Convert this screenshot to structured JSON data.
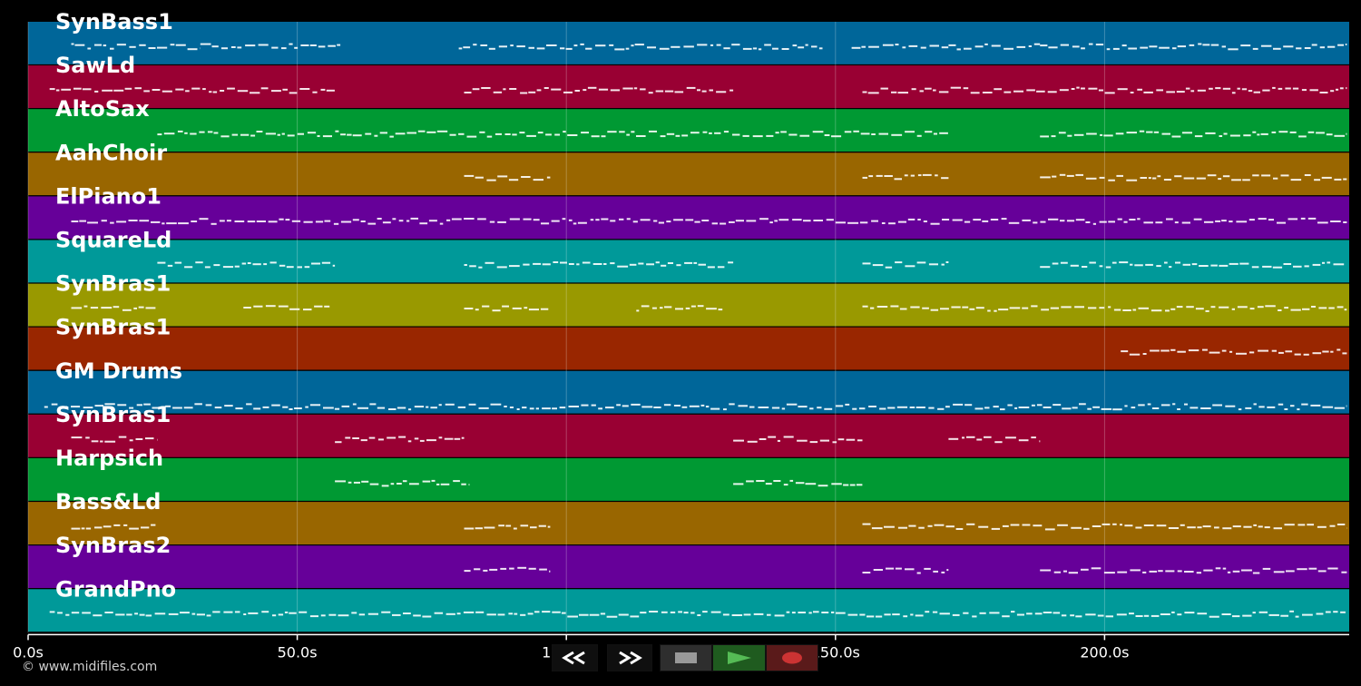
{
  "tracks": [
    {
      "name": "SynBass1",
      "color": "#006699"
    },
    {
      "name": "SawLd",
      "color": "#990033"
    },
    {
      "name": "AltoSax",
      "color": "#009933"
    },
    {
      "name": "AahChoir",
      "color": "#996600"
    },
    {
      "name": "ElPiano1",
      "color": "#660099"
    },
    {
      "name": "SquareLd",
      "color": "#009999"
    },
    {
      "name": "SynBras1",
      "color": "#999900"
    },
    {
      "name": "SynBras1",
      "color": "#992600"
    },
    {
      "name": "GM Drums",
      "color": "#006699"
    },
    {
      "name": "SynBras1",
      "color": "#990033"
    },
    {
      "name": "Harpsich",
      "color": "#009933"
    },
    {
      "name": "Bass&Ld",
      "color": "#996600"
    },
    {
      "name": "SynBras2",
      "color": "#660099"
    },
    {
      "name": "GrandPno",
      "color": "#009999"
    }
  ],
  "axis": {
    "ticks": [
      "0.0s",
      "50.0s",
      "100.0s",
      "150.0s",
      "200.0s"
    ],
    "tick_values": [
      0,
      50,
      100,
      150,
      200
    ],
    "max_seconds": 245
  },
  "note_segments": [
    [
      [
        8,
        32
      ],
      [
        32,
        58
      ],
      [
        80,
        112
      ],
      [
        112,
        148
      ],
      [
        153,
        171
      ],
      [
        171,
        188
      ],
      [
        188,
        245
      ]
    ],
    [
      [
        4,
        57
      ],
      [
        81,
        131
      ],
      [
        155,
        245
      ]
    ],
    [
      [
        24,
        171
      ],
      [
        188,
        245
      ]
    ],
    [
      [
        81,
        97
      ],
      [
        155,
        171
      ],
      [
        188,
        245
      ]
    ],
    [
      [
        8,
        245
      ]
    ],
    [
      [
        24,
        57
      ],
      [
        81,
        131
      ],
      [
        155,
        171
      ],
      [
        188,
        245
      ]
    ],
    [
      [
        8,
        24
      ],
      [
        40,
        56
      ],
      [
        81,
        97
      ],
      [
        113,
        129
      ],
      [
        155,
        245
      ]
    ],
    [
      [
        203,
        245
      ]
    ],
    [
      [
        3,
        245
      ]
    ],
    [
      [
        8,
        24
      ],
      [
        57,
        81
      ],
      [
        131,
        155
      ],
      [
        171,
        188
      ]
    ],
    [
      [
        57,
        82
      ],
      [
        131,
        155
      ]
    ],
    [
      [
        8,
        24
      ],
      [
        81,
        97
      ],
      [
        155,
        245
      ]
    ],
    [
      [
        81,
        97
      ],
      [
        155,
        171
      ],
      [
        188,
        245
      ]
    ],
    [
      [
        4,
        245
      ]
    ]
  ],
  "transport": {
    "rewind": "rewind-icon",
    "forward": "fast-forward-icon",
    "stop": "stop-icon",
    "play": "play-icon",
    "record": "record-icon",
    "play_color": "#55bb55",
    "record_color": "#cc3333",
    "stop_color": "#999999"
  },
  "credit": "© www.midifiles.com"
}
